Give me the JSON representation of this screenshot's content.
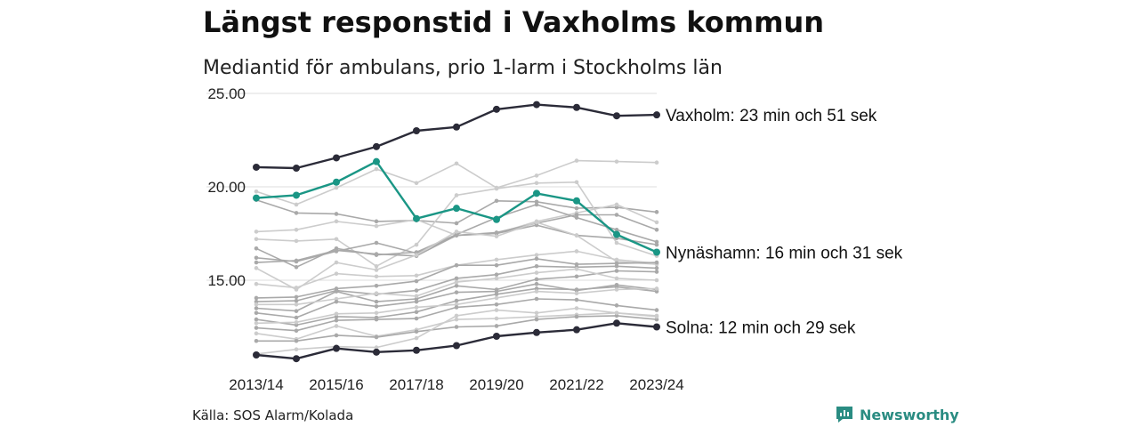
{
  "header": {
    "title": "Längst responstid i Vaxholms kommun",
    "subtitle": "Mediantid för ambulans, prio 1-larm i Stockholms län"
  },
  "footer": {
    "source": "Källa: SOS Alarm/Kolada",
    "brand": "Newsworthy"
  },
  "colors": {
    "highlight_dark": "#2b2b38",
    "highlight_teal": "#1a9685",
    "background_line_light": "#cccccc",
    "background_line_mid": "#a9a9a9",
    "grid": "#dddddd",
    "brand": "#2a8c82"
  },
  "chart_data": {
    "type": "line",
    "x": [
      "2013/14",
      "2014/15",
      "2015/16",
      "2016/17",
      "2017/18",
      "2018/19",
      "2019/20",
      "2020/21",
      "2021/22",
      "2022/23",
      "2023/24"
    ],
    "x_tick_labels": [
      "2013/14",
      "2015/16",
      "2017/18",
      "2019/20",
      "2021/22",
      "2023/24"
    ],
    "y_ticks": [
      "15.00",
      "20.00",
      "25.00"
    ],
    "ylim": [
      10.6,
      25.0
    ],
    "grid": true,
    "annotations": [
      {
        "series": "Vaxholm",
        "text": "Vaxholm: 23 min och 51 sek"
      },
      {
        "series": "Nynäshamn",
        "text": "Nynäshamn: 16 min och 31 sek"
      },
      {
        "series": "Solna",
        "text": "Solna: 12 min och 29 sek"
      }
    ],
    "highlight_series": [
      {
        "name": "Vaxholm",
        "color": "#2b2b38",
        "values": [
          21.05,
          21.0,
          21.55,
          22.15,
          23.0,
          23.2,
          24.15,
          24.4,
          24.25,
          23.8,
          23.85
        ]
      },
      {
        "name": "Nynäshamn",
        "color": "#1a9685",
        "values": [
          19.4,
          19.55,
          20.25,
          21.35,
          18.3,
          18.85,
          18.25,
          19.65,
          19.25,
          17.45,
          16.5
        ]
      },
      {
        "name": "Solna",
        "color": "#2b2b38",
        "values": [
          11.0,
          10.8,
          11.35,
          11.15,
          11.25,
          11.5,
          12.0,
          12.2,
          12.35,
          12.7,
          12.5
        ]
      }
    ],
    "background_series": [
      {
        "color": "#cccccc",
        "values": [
          19.75,
          19.05,
          19.95,
          20.95,
          20.2,
          21.25,
          19.95,
          20.6,
          21.4,
          21.35,
          21.3
        ]
      },
      {
        "color": "#a9a9a9",
        "values": [
          19.3,
          18.6,
          18.55,
          18.15,
          18.2,
          18.05,
          19.25,
          19.2,
          18.85,
          18.9,
          18.65
        ]
      },
      {
        "color": "#cccccc",
        "values": [
          17.6,
          17.7,
          18.15,
          17.9,
          18.25,
          17.4,
          17.5,
          18.15,
          18.6,
          19.05,
          18.1
        ]
      },
      {
        "color": "#cccccc",
        "values": [
          17.2,
          17.1,
          17.2,
          15.75,
          16.9,
          19.55,
          19.9,
          20.2,
          20.25,
          17.0,
          16.3
        ]
      },
      {
        "color": "#a9a9a9",
        "values": [
          16.2,
          16.0,
          16.55,
          17.0,
          16.45,
          17.4,
          17.55,
          18.05,
          18.5,
          18.5,
          17.7
        ]
      },
      {
        "color": "#a9a9a9",
        "values": [
          16.7,
          15.7,
          16.7,
          16.35,
          16.5,
          17.45,
          18.35,
          19.05,
          18.35,
          17.7,
          17.05
        ]
      },
      {
        "color": "#a9a9a9",
        "values": [
          15.95,
          16.05,
          16.6,
          16.4,
          16.3,
          17.4,
          17.5,
          17.95,
          17.4,
          17.25,
          16.9
        ]
      },
      {
        "color": "#cccccc",
        "values": [
          15.65,
          14.5,
          15.95,
          15.55,
          16.35,
          17.6,
          17.35,
          18.1,
          17.4,
          16.0,
          15.85
        ]
      },
      {
        "color": "#cccccc",
        "values": [
          14.8,
          14.6,
          15.35,
          15.2,
          15.25,
          15.8,
          16.1,
          16.35,
          16.55,
          16.1,
          15.9
        ]
      },
      {
        "color": "#a9a9a9",
        "values": [
          14.05,
          14.1,
          14.55,
          14.7,
          14.95,
          15.8,
          15.8,
          16.15,
          15.85,
          15.9,
          15.95
        ]
      },
      {
        "color": "#a9a9a9",
        "values": [
          13.85,
          13.9,
          14.45,
          14.25,
          14.45,
          15.1,
          15.3,
          15.75,
          15.7,
          15.75,
          15.65
        ]
      },
      {
        "color": "#a9a9a9",
        "values": [
          13.5,
          13.35,
          14.4,
          13.85,
          14.0,
          14.7,
          14.5,
          15.05,
          15.2,
          15.5,
          15.45
        ]
      },
      {
        "color": "#cccccc",
        "values": [
          13.7,
          13.7,
          14.0,
          14.3,
          14.15,
          14.9,
          15.1,
          15.4,
          15.6,
          15.1,
          15.0
        ]
      },
      {
        "color": "#a9a9a9",
        "values": [
          13.25,
          13.0,
          13.85,
          13.6,
          13.85,
          14.35,
          14.4,
          14.8,
          14.45,
          14.75,
          14.5
        ]
      },
      {
        "color": "#a9a9a9",
        "values": [
          12.9,
          12.6,
          13.05,
          13.0,
          13.3,
          13.9,
          14.25,
          14.55,
          14.5,
          14.65,
          14.4
        ]
      },
      {
        "color": "#cccccc",
        "values": [
          12.7,
          12.75,
          13.2,
          13.25,
          13.55,
          13.7,
          14.05,
          14.4,
          14.3,
          14.5,
          14.55
        ]
      },
      {
        "color": "#a9a9a9",
        "values": [
          12.45,
          12.3,
          12.85,
          12.9,
          12.95,
          13.55,
          13.7,
          14.0,
          13.95,
          13.65,
          13.4
        ]
      },
      {
        "color": "#cccccc",
        "values": [
          12.15,
          11.85,
          12.55,
          12.0,
          12.35,
          12.9,
          12.95,
          13.05,
          13.15,
          13.25,
          13.1
        ]
      },
      {
        "color": "#a9a9a9",
        "values": [
          11.75,
          11.75,
          12.05,
          11.95,
          12.25,
          12.5,
          12.55,
          12.9,
          13.05,
          13.1,
          12.9
        ]
      },
      {
        "color": "#cccccc",
        "values": [
          11.05,
          11.3,
          11.45,
          11.4,
          11.9,
          13.1,
          13.4,
          13.25,
          13.5,
          13.25,
          13.05
        ]
      }
    ]
  }
}
